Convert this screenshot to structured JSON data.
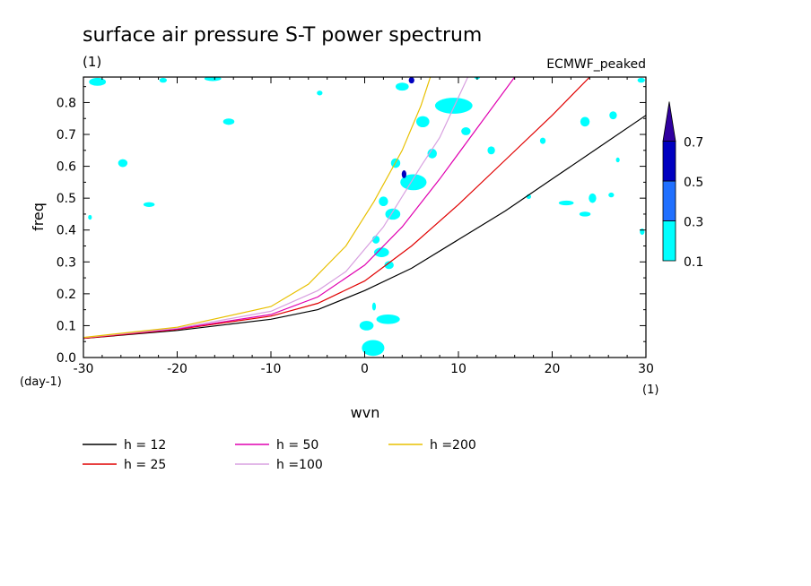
{
  "chart_data": {
    "type": "line",
    "title": "surface air pressure S-T power spectrum",
    "subtitle_left": "(1)",
    "subtitle_right": "ECMWF_peaked",
    "xlabel": "wvn",
    "ylabel": "freq",
    "x_unit": "(1)",
    "y_unit": "(day-1)",
    "xlim": [
      -30,
      30
    ],
    "ylim": [
      0,
      0.88
    ],
    "x_ticks": [
      -30,
      -20,
      -10,
      0,
      10,
      20,
      30
    ],
    "x_tick_labels": [
      "-30",
      "-20",
      "-10",
      "0",
      "10",
      "20",
      "30"
    ],
    "y_ticks": [
      0,
      0.1,
      0.2,
      0.3,
      0.4,
      0.5,
      0.6,
      0.7,
      0.8
    ],
    "y_tick_labels": [
      "0.0",
      "0.1",
      "0.2",
      "0.3",
      "0.4",
      "0.5",
      "0.6",
      "0.7",
      "0.8"
    ],
    "series": [
      {
        "name": "h = 12",
        "color": "#000000",
        "x": [
          -30,
          -20,
          -10,
          -5,
          0,
          5,
          10,
          15,
          20,
          25,
          30
        ],
        "y": [
          0.06,
          0.085,
          0.12,
          0.15,
          0.21,
          0.28,
          0.37,
          0.46,
          0.56,
          0.66,
          0.76
        ]
      },
      {
        "name": "h = 25",
        "color": "#e00000",
        "x": [
          -30,
          -20,
          -10,
          -5,
          0,
          5,
          10,
          15,
          20,
          24
        ],
        "y": [
          0.06,
          0.088,
          0.13,
          0.17,
          0.24,
          0.35,
          0.48,
          0.62,
          0.76,
          0.88
        ]
      },
      {
        "name": "h = 50",
        "color": "#e000b0",
        "x": [
          -30,
          -20,
          -10,
          -5,
          0,
          4,
          8,
          12,
          16
        ],
        "y": [
          0.062,
          0.09,
          0.135,
          0.19,
          0.29,
          0.41,
          0.56,
          0.72,
          0.88
        ]
      },
      {
        "name": "h =100",
        "color": "#d8a0e0",
        "x": [
          -30,
          -20,
          -10,
          -5,
          -2,
          2,
          6,
          8,
          11
        ],
        "y": [
          0.062,
          0.092,
          0.145,
          0.21,
          0.27,
          0.41,
          0.6,
          0.69,
          0.88
        ]
      },
      {
        "name": "h =200",
        "color": "#e8c000",
        "x": [
          -30,
          -20,
          -10,
          -6,
          -2,
          1,
          4,
          6,
          7
        ],
        "y": [
          0.063,
          0.095,
          0.16,
          0.23,
          0.35,
          0.49,
          0.65,
          0.79,
          0.88
        ]
      }
    ],
    "contour_levels": [
      "0.1",
      "0.3",
      "0.5",
      "0.7"
    ],
    "contour_colors": [
      "#00ffff",
      "#2070ff",
      "#0000c0",
      "#3000a0"
    ],
    "contour_blobs": [
      {
        "x": 0.9,
        "y": 0.03,
        "w": 2.4,
        "h": 0.05
      },
      {
        "x": 0.2,
        "y": 0.1,
        "w": 1.5,
        "h": 0.03
      },
      {
        "x": 2.5,
        "y": 0.12,
        "w": 2.5,
        "h": 0.03
      },
      {
        "x": 1.0,
        "y": 0.16,
        "w": 0.4,
        "h": 0.025
      },
      {
        "x": 1.8,
        "y": 0.33,
        "w": 1.6,
        "h": 0.03
      },
      {
        "x": 1.2,
        "y": 0.37,
        "w": 0.8,
        "h": 0.025
      },
      {
        "x": 2.6,
        "y": 0.29,
        "w": 1.0,
        "h": 0.025
      },
      {
        "x": 3.0,
        "y": 0.45,
        "w": 1.6,
        "h": 0.035
      },
      {
        "x": 2.0,
        "y": 0.49,
        "w": 1.0,
        "h": 0.03
      },
      {
        "x": 5.2,
        "y": 0.55,
        "w": 2.8,
        "h": 0.05
      },
      {
        "x": 3.3,
        "y": 0.61,
        "w": 1.0,
        "h": 0.03
      },
      {
        "x": 7.2,
        "y": 0.64,
        "w": 1.0,
        "h": 0.03
      },
      {
        "x": 6.2,
        "y": 0.74,
        "w": 1.4,
        "h": 0.035
      },
      {
        "x": 9.5,
        "y": 0.79,
        "w": 4.0,
        "h": 0.05
      },
      {
        "x": 4.0,
        "y": 0.85,
        "w": 1.4,
        "h": 0.025
      },
      {
        "x": 10.8,
        "y": 0.71,
        "w": 1.0,
        "h": 0.025
      },
      {
        "x": -25.8,
        "y": 0.61,
        "w": 1.0,
        "h": 0.025
      },
      {
        "x": -14.5,
        "y": 0.74,
        "w": 1.2,
        "h": 0.02
      },
      {
        "x": -28.5,
        "y": 0.865,
        "w": 1.8,
        "h": 0.025
      },
      {
        "x": -21.5,
        "y": 0.87,
        "w": 0.8,
        "h": 0.015
      },
      {
        "x": -16.2,
        "y": 0.875,
        "w": 1.8,
        "h": 0.015
      },
      {
        "x": -4.8,
        "y": 0.83,
        "w": 0.6,
        "h": 0.015
      },
      {
        "x": 12.0,
        "y": 0.88,
        "w": 0.6,
        "h": 0.015
      },
      {
        "x": 13.5,
        "y": 0.65,
        "w": 0.8,
        "h": 0.025
      },
      {
        "x": 19.0,
        "y": 0.68,
        "w": 0.6,
        "h": 0.02
      },
      {
        "x": 23.5,
        "y": 0.74,
        "w": 1.0,
        "h": 0.03
      },
      {
        "x": 26.5,
        "y": 0.76,
        "w": 0.8,
        "h": 0.025
      },
      {
        "x": 24.3,
        "y": 0.5,
        "w": 0.8,
        "h": 0.03
      },
      {
        "x": 21.5,
        "y": 0.485,
        "w": 1.6,
        "h": 0.015
      },
      {
        "x": 23.5,
        "y": 0.45,
        "w": 1.2,
        "h": 0.015
      },
      {
        "x": 27.0,
        "y": 0.62,
        "w": 0.4,
        "h": 0.015
      },
      {
        "x": 26.3,
        "y": 0.51,
        "w": 0.6,
        "h": 0.015
      },
      {
        "x": 29.5,
        "y": 0.87,
        "w": 0.8,
        "h": 0.015
      },
      {
        "x": 29.6,
        "y": 0.395,
        "w": 0.5,
        "h": 0.02
      },
      {
        "x": -23.0,
        "y": 0.48,
        "w": 1.2,
        "h": 0.015
      },
      {
        "x": -29.3,
        "y": 0.44,
        "w": 0.4,
        "h": 0.015
      },
      {
        "x": 17.5,
        "y": 0.505,
        "w": 0.5,
        "h": 0.015
      }
    ],
    "contour_blobs_dark": [
      {
        "x": 4.2,
        "y": 0.575,
        "w": 0.5,
        "h": 0.025
      },
      {
        "x": 5.0,
        "y": 0.87,
        "w": 0.6,
        "h": 0.02
      }
    ]
  }
}
